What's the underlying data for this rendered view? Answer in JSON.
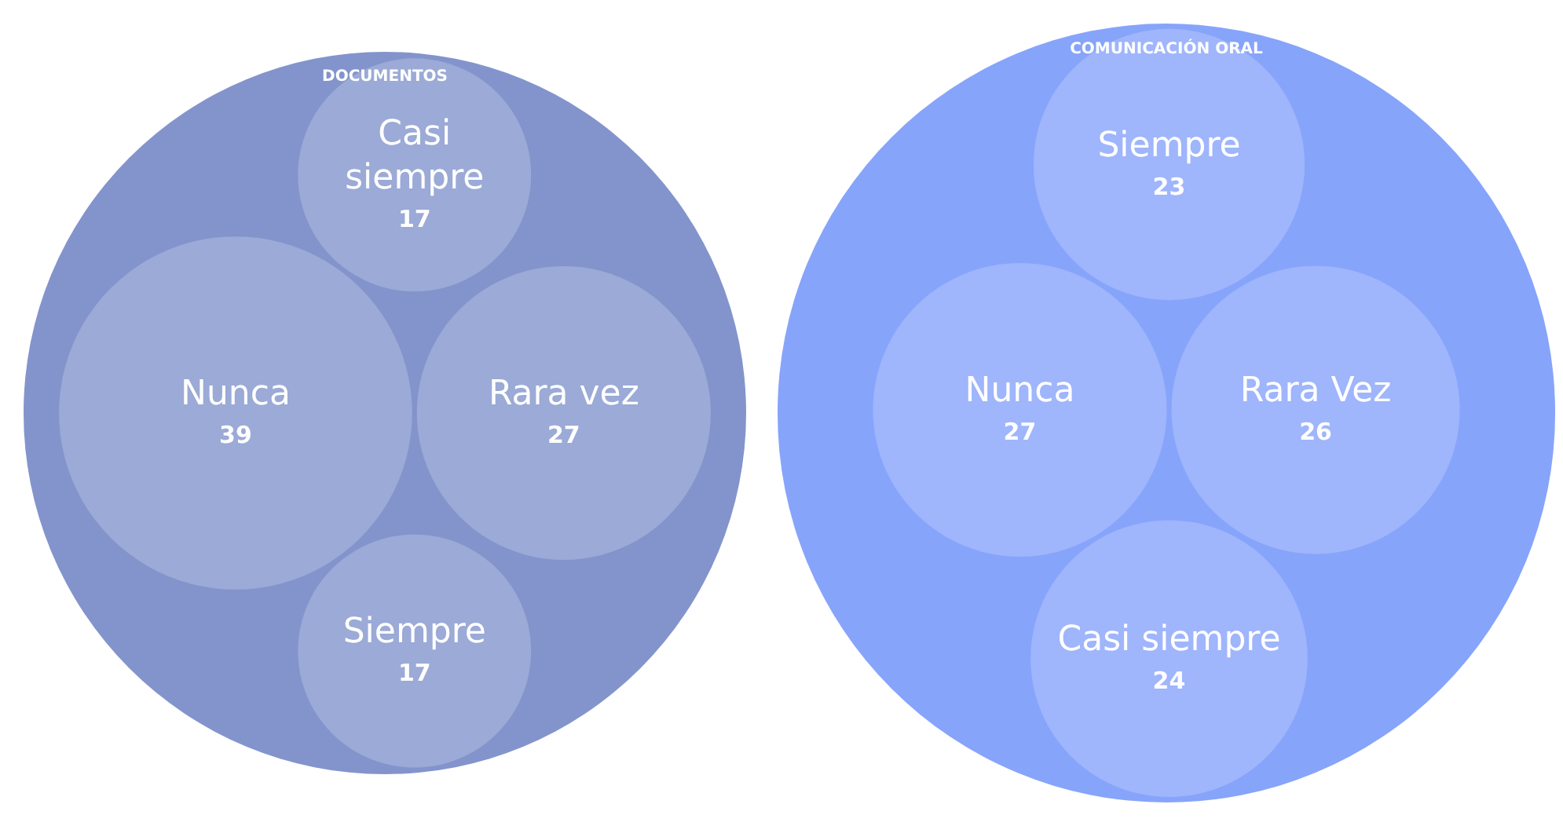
{
  "chart_data": [
    {
      "type": "other",
      "title": "DOCUMENTOS",
      "color": "#8394cc",
      "categories": [
        "Casi siempre",
        "Nunca",
        "Rara vez",
        "Siempre"
      ],
      "values": [
        17,
        39,
        27,
        17
      ],
      "data_labels": true,
      "colors": [
        "#9baad6",
        "#9baad6",
        "#9baad6",
        "#9baad6"
      ]
    },
    {
      "type": "other",
      "title": "COMUNICACIÓN ORAL",
      "color": "#87a4fb",
      "categories": [
        "Siempre",
        "Nunca",
        "Rara Vez",
        "Casi siempre"
      ],
      "values": [
        23,
        27,
        26,
        24
      ],
      "data_labels": true,
      "colors": [
        "#9fb5fc",
        "#9fb5fc",
        "#9fb5fc",
        "#9fb5fc"
      ]
    }
  ]
}
